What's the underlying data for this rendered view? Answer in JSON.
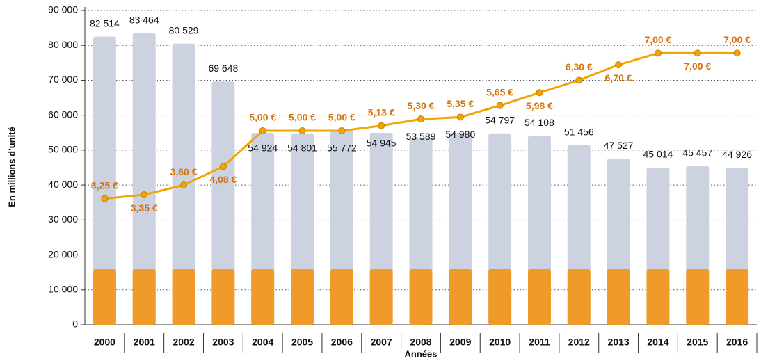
{
  "chart_data": {
    "type": "bar-line",
    "y_axis_label": "En millions d’unité",
    "x_axis_label": "Années",
    "categories": [
      "2000",
      "2001",
      "2002",
      "2003",
      "2004",
      "2005",
      "2006",
      "2007",
      "2008",
      "2009",
      "2010",
      "2011",
      "2012",
      "2013",
      "2014",
      "2015",
      "2016"
    ],
    "series": [
      {
        "type": "bar",
        "color": "#cdd2e0",
        "values": [
          82514,
          83464,
          80529,
          69648,
          54924,
          54801,
          55772,
          54945,
          53589,
          54980,
          54797,
          54108,
          51456,
          47527,
          45014,
          45457,
          44926
        ],
        "value_labels": [
          "82 514",
          "83 464",
          "80 529",
          "69 648",
          "54 924",
          "54 801",
          "55 772",
          "54 945",
          "53 589",
          "54 980",
          "54 797",
          "54 108",
          "51 456",
          "47 527",
          "45 014",
          "45 457",
          "44 926"
        ]
      },
      {
        "type": "line",
        "axis": "y2",
        "color": "#f0a500",
        "values": [
          3.25,
          3.35,
          3.6,
          4.08,
          5.0,
          5.0,
          5.0,
          5.13,
          5.3,
          5.35,
          5.65,
          5.98,
          6.3,
          6.7,
          7.0,
          7.0,
          7.0
        ],
        "value_labels": [
          "3,25 €",
          "3,35 €",
          "3,60 €",
          "4,08 €",
          "5,00 €",
          "5,00 €",
          "5,00 €",
          "5,13 €",
          "5,30 €",
          "5,35 €",
          "5,65 €",
          "5,98 €",
          "6,30  €",
          "6,70 €",
          "7,00 €",
          "7,00 €",
          "7,00 €"
        ]
      }
    ],
    "ylim": [
      0,
      90000
    ],
    "yticks": [
      0,
      {
        "value": 10000,
        "label": "10 000"
      },
      {
        "value": 20000,
        "label": "20 000"
      },
      {
        "value": 30000,
        "label": "30 000"
      },
      {
        "value": 40000,
        "label": "40 000"
      },
      {
        "value": 50000,
        "label": "50 000"
      },
      {
        "value": 60000,
        "label": "60 000"
      },
      {
        "value": 70000,
        "label": "70 000"
      },
      {
        "value": 80000,
        "label": "80 000"
      },
      {
        "value": 90000,
        "label": "90 000"
      }
    ],
    "y2lim": [
      0,
      8.1
    ],
    "grid": true
  }
}
